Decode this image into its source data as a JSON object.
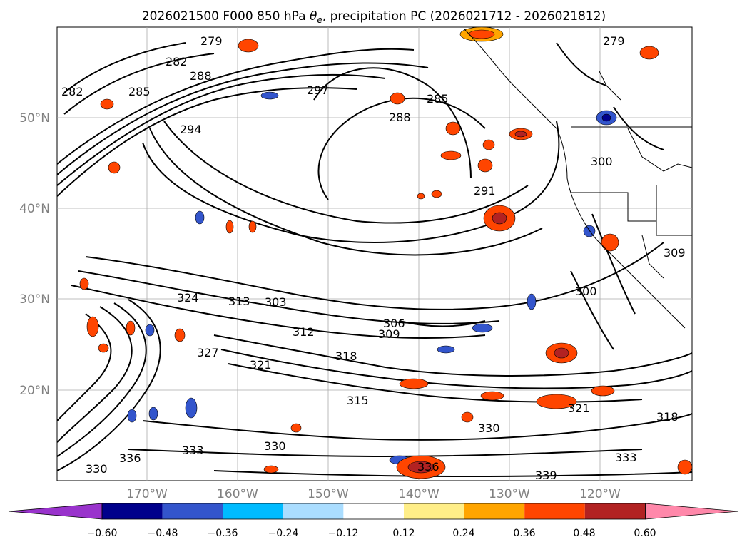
{
  "title": "2026021500 F000 850 hPa θe, precipitation PC (2026021712 - 2026021812)",
  "title_parts": {
    "prefix": "2026021500 F000 850 hPa ",
    "theta": "θ",
    "sub": "e",
    "suffix": ", precipitation PC (2026021712 - 2026021812)"
  },
  "map": {
    "lat_labels": [
      "50°N",
      "40°N",
      "30°N",
      "20°N"
    ],
    "lon_labels": [
      "170°W",
      "160°W",
      "150°W",
      "140°W",
      "130°W",
      "120°W"
    ],
    "contour_labels": [
      "279",
      "282",
      "285",
      "288",
      "294",
      "297",
      "291",
      "285",
      "288",
      "282",
      "279",
      "300",
      "309",
      "300",
      "306",
      "309",
      "303",
      "313",
      "324",
      "327",
      "321",
      "318",
      "312",
      "315",
      "321",
      "318",
      "330",
      "336",
      "333",
      "330",
      "336",
      "339",
      "333",
      "330"
    ]
  },
  "colorbar": {
    "ticks": [
      "−0.60",
      "−0.48",
      "−0.36",
      "−0.24",
      "−0.12",
      "0.12",
      "0.24",
      "0.36",
      "0.48",
      "0.60"
    ],
    "colors": [
      "#9933cc",
      "#00008b",
      "#3355cc",
      "#00bbff",
      "#aaddff",
      "#ffffff",
      "#ffee88",
      "#ffa500",
      "#ff4500",
      "#b22222",
      "#ff88aa"
    ]
  }
}
